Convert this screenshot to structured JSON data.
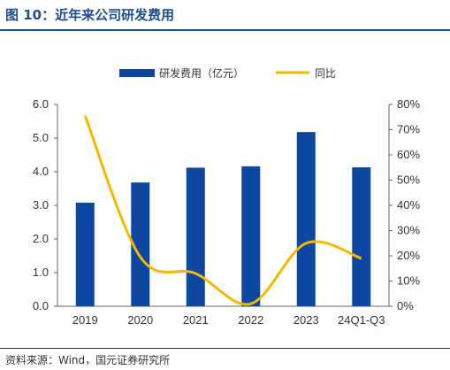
{
  "figure": {
    "title": "图 10：近年来公司研发费用",
    "source": "资料来源：Wind，国元证券研究所"
  },
  "chart_data": {
    "type": "bar",
    "categories": [
      "2019",
      "2020",
      "2021",
      "2022",
      "2023",
      "24Q1-Q3"
    ],
    "series": [
      {
        "name": "研发费用（亿元）",
        "type": "bar",
        "axis": "left",
        "color": "#0d47a1",
        "values": [
          3.08,
          3.68,
          4.12,
          4.16,
          5.18,
          4.13
        ]
      },
      {
        "name": "同比",
        "type": "line",
        "axis": "right",
        "color": "#f5b800",
        "smooth": true,
        "values": [
          0.755,
          0.195,
          0.13,
          0.01,
          0.25,
          0.19
        ]
      }
    ],
    "y_left": {
      "lim": [
        0,
        6
      ],
      "ticks": [
        0,
        1,
        2,
        3,
        4,
        5,
        6
      ],
      "tick_labels": [
        "0.0",
        "1.0",
        "2.0",
        "3.0",
        "4.0",
        "5.0",
        "6.0"
      ]
    },
    "y_right": {
      "lim": [
        0,
        0.8
      ],
      "ticks": [
        0,
        0.1,
        0.2,
        0.3,
        0.4,
        0.5,
        0.6,
        0.7,
        0.8
      ],
      "tick_labels": [
        "0%",
        "10%",
        "20%",
        "30%",
        "40%",
        "50%",
        "60%",
        "70%",
        "80%"
      ]
    },
    "legend": "top",
    "grid": false
  }
}
